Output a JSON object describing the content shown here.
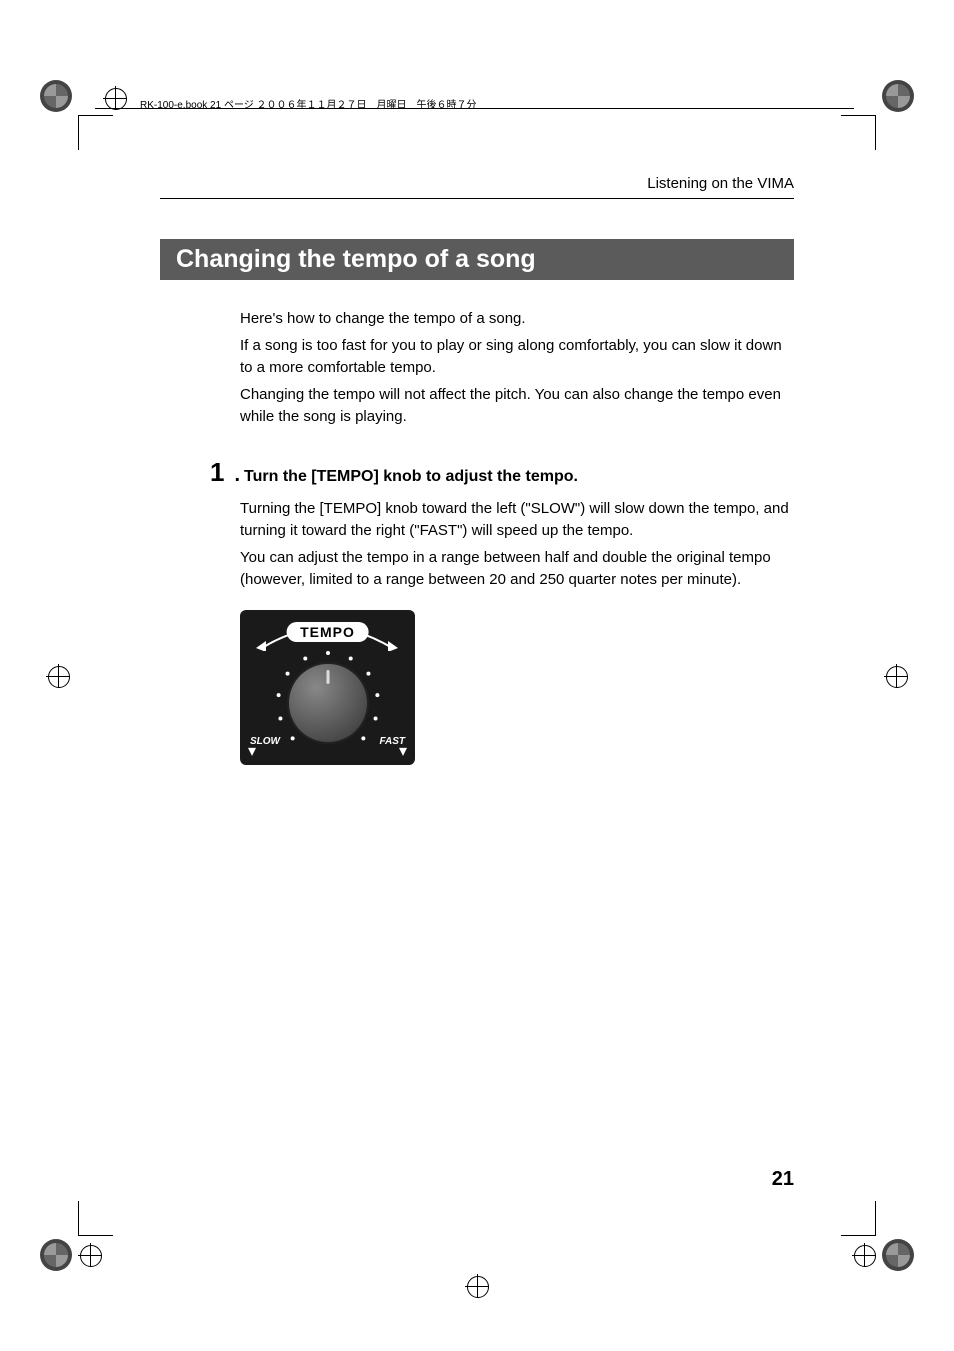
{
  "header": {
    "meta_text": "RK-100-e.book 21 ページ ２００６年１１月２７日　月曜日　午後６時７分"
  },
  "breadcrumb": "Listening on the VIMA",
  "section": {
    "title": "Changing the tempo of a song",
    "banner_bg": "#5b5b5b",
    "banner_fg": "#ffffff"
  },
  "intro": {
    "p1": "Here's how to change the tempo of a song.",
    "p2": "If a song is too fast for you to play or sing along comfortably, you can slow it down to a more comfortable tempo.",
    "p3": "Changing the tempo will not affect the pitch. You can also change the tempo even while the song is playing."
  },
  "step": {
    "number": "1",
    "dot": ".",
    "title": "Turn the [TEMPO] knob to adjust the tempo.",
    "p1": "Turning the [TEMPO] knob toward the left (\"SLOW\") will slow down the tempo, and turning it toward the right (\"FAST\") will speed up the tempo.",
    "p2": "You can adjust the tempo in a range between half and double the original tempo (however, limited to a range between 20 and 250 quarter notes per minute)."
  },
  "knob": {
    "label": "TEMPO",
    "slow": "SLOW",
    "fast": "FAST",
    "panel_bg": "#1a1a1a",
    "label_bg": "#ffffff",
    "label_fg": "#000000",
    "tick_color": "#ffffff",
    "dial_gradient_from": "#888888",
    "dial_gradient_to": "#333333",
    "text_color": "#ffffff",
    "tick_count": 11
  },
  "page_number": "21",
  "colors": {
    "text": "#000000",
    "background": "#ffffff"
  }
}
